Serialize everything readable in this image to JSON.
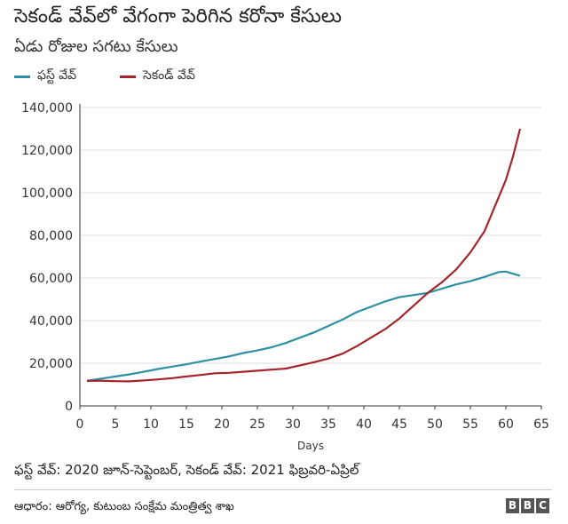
{
  "chart_data": {
    "type": "line",
    "title": "సెకండ్ వేవ్‌లో వేగంగా పెరిగిన కరోనా కేసులు",
    "subtitle": "ఏడు రోజుల సగటు కేసులు",
    "xlabel": "Days",
    "ylabel": "",
    "xlim": [
      0,
      65
    ],
    "ylim": [
      0,
      140000
    ],
    "xticks": [
      0,
      5,
      10,
      15,
      20,
      25,
      30,
      35,
      40,
      45,
      50,
      55,
      60,
      65
    ],
    "yticks": [
      0,
      20000,
      40000,
      60000,
      80000,
      100000,
      120000,
      140000
    ],
    "ytick_labels": [
      "0",
      "20,000",
      "40,000",
      "60,000",
      "80,000",
      "100,000",
      "120,000",
      "140,000"
    ],
    "grid": "horizontal",
    "legend": "top-left",
    "series": [
      {
        "name": "ఫస్ట్ వేవ్",
        "color": "#2f8fa3",
        "x": [
          1,
          3,
          5,
          7,
          9,
          11,
          13,
          15,
          17,
          19,
          21,
          23,
          25,
          27,
          29,
          31,
          33,
          35,
          37,
          39,
          41,
          43,
          45,
          47,
          49,
          51,
          53,
          55,
          57,
          59,
          60,
          62
        ],
        "y": [
          11800,
          12800,
          13800,
          14800,
          16000,
          17300,
          18400,
          19500,
          20800,
          22000,
          23200,
          24800,
          26000,
          27500,
          29500,
          32000,
          34500,
          37500,
          40500,
          44000,
          46500,
          49000,
          51000,
          52000,
          53000,
          55000,
          57000,
          58500,
          60500,
          62800,
          63000,
          61000
        ]
      },
      {
        "name": "సెకండ్ వేవ్",
        "color": "#a3262a",
        "x": [
          1,
          3,
          5,
          7,
          9,
          11,
          13,
          15,
          17,
          19,
          21,
          23,
          25,
          27,
          29,
          31,
          33,
          35,
          37,
          39,
          41,
          43,
          45,
          47,
          49,
          51,
          53,
          55,
          57,
          58,
          59,
          60,
          61,
          62
        ],
        "y": [
          11700,
          11800,
          11600,
          11500,
          11900,
          12400,
          13000,
          13800,
          14500,
          15300,
          15500,
          16000,
          16500,
          17000,
          17500,
          19000,
          20500,
          22200,
          24500,
          28000,
          32000,
          36000,
          41000,
          47000,
          53000,
          58000,
          64000,
          72000,
          82000,
          90000,
          98000,
          106000,
          117000,
          130000
        ]
      }
    ]
  },
  "footnote": "ఫస్ట్ వేవ్: 2020 జూన్-సెప్టెంబర్, సెకండ్ వేవ్: 2021 ఫిబ్రవరి-ఏప్రిల్",
  "source": "ఆధారం: ఆరోగ్య, కుటుంబ సంక్షేమ మంత్రిత్వ శాఖ",
  "logo_letters": [
    "B",
    "B",
    "C"
  ]
}
